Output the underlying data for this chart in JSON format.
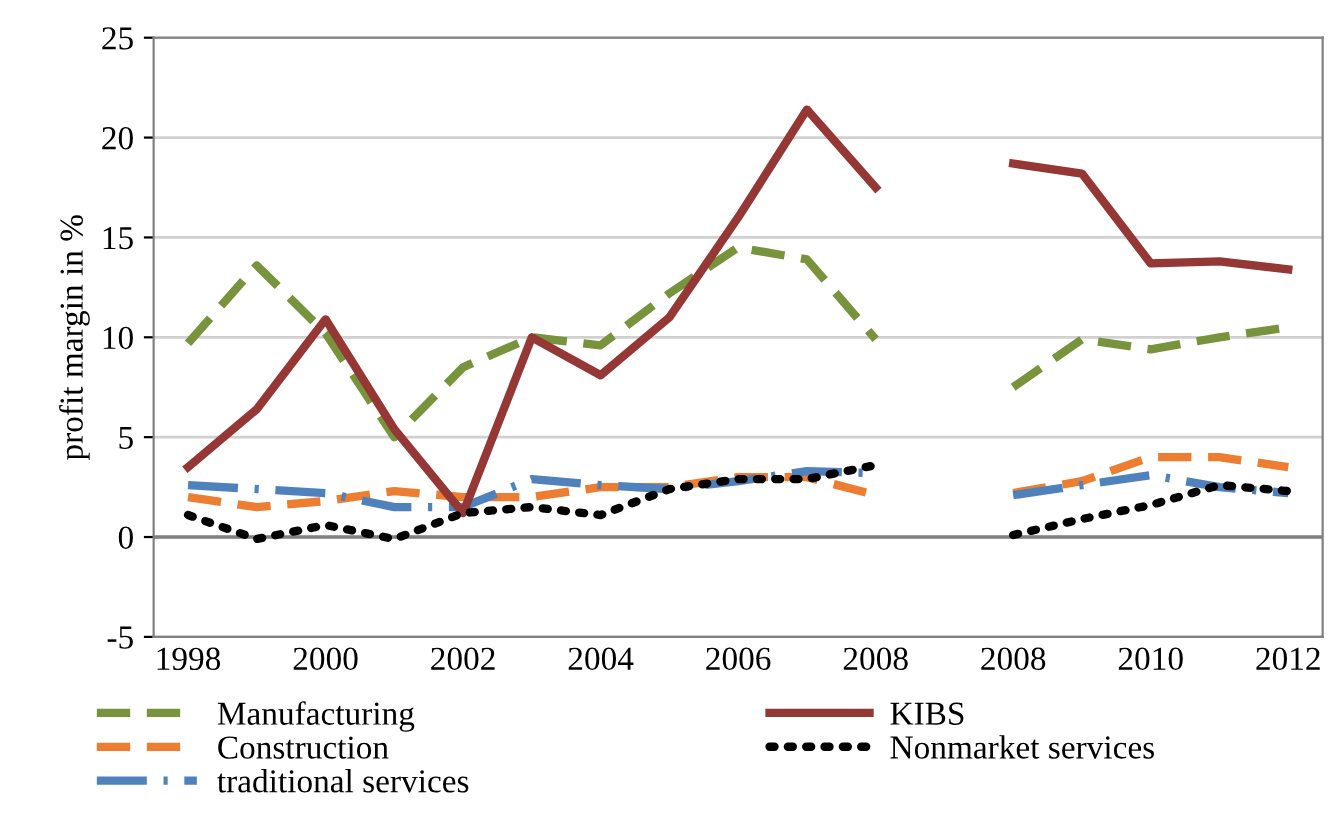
{
  "chart_data": {
    "type": "line",
    "ylabel": "profit margin in %",
    "categories": [
      "1998",
      null,
      "2000",
      null,
      "2002",
      null,
      "2004",
      null,
      "2006",
      null,
      "2008",
      null,
      "2008",
      null,
      "2010",
      null,
      "2012"
    ],
    "series": [
      {
        "name": "Manufacturing",
        "color": "#77933c",
        "line_style": "dashed",
        "values": [
          9.7,
          13.6,
          10.2,
          5.0,
          8.5,
          10.0,
          9.6,
          12.2,
          14.5,
          13.9,
          9.9,
          null,
          7.5,
          9.9,
          9.4,
          10.0,
          10.5
        ]
      },
      {
        "name": "Construction",
        "color": "#ed7d31",
        "line_style": "dashed",
        "values": [
          2.0,
          1.5,
          1.8,
          2.3,
          2.0,
          2.0,
          2.5,
          2.5,
          3.0,
          3.0,
          2.1,
          null,
          2.2,
          2.8,
          4.0,
          4.0,
          3.5
        ]
      },
      {
        "name": "traditional services",
        "color": "#4f81bd",
        "line_style": "dashdot",
        "values": [
          2.6,
          2.4,
          2.2,
          1.5,
          1.5,
          2.9,
          2.6,
          2.4,
          2.8,
          3.3,
          3.2,
          null,
          2.1,
          2.6,
          3.1,
          2.5,
          2.2
        ]
      },
      {
        "name": "KIBS",
        "color": "#953735",
        "line_style": "solid",
        "values": [
          3.5,
          6.4,
          10.9,
          5.4,
          1.2,
          10.0,
          8.1,
          11.0,
          16.0,
          21.4,
          17.5,
          null,
          18.7,
          18.2,
          13.7,
          13.8,
          13.4
        ]
      },
      {
        "name": "Nonmarket services",
        "color": "#000000",
        "line_style": "dotted",
        "values": [
          1.1,
          -0.1,
          0.6,
          -0.1,
          1.2,
          1.5,
          1.1,
          2.4,
          2.9,
          2.9,
          3.6,
          null,
          0.1,
          0.9,
          1.6,
          2.6,
          2.3
        ]
      }
    ],
    "ylim": [
      -5,
      25
    ],
    "yticks": [
      -5,
      0,
      5,
      10,
      15,
      20,
      25
    ],
    "grid": "y",
    "legend": "bottom",
    "marker": "none",
    "ref_lines": [
      {
        "axis": "y",
        "value": 0,
        "color": "#808080"
      }
    ]
  }
}
